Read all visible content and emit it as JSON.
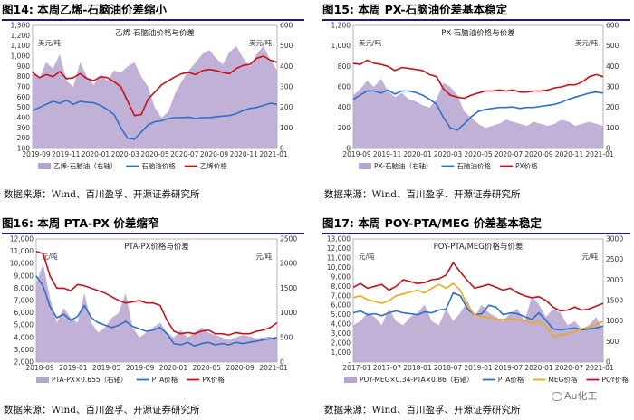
{
  "page": {
    "panels": [
      {
        "figure": "图14:",
        "title": "本周乙烯-石脑油价差缩小",
        "source": "数据来源：Wind、百川盈孚、开源证券研究所"
      },
      {
        "figure": "图15:",
        "title": "本周 PX-石脑油价差基本稳定",
        "source": "数据来源：Wind、百川盈孚、开源证券研究所"
      },
      {
        "figure": "图16:",
        "title": "本周 PTA-PX 价差缩窄",
        "source": "数据来源：Wind、百川盈孚、开源证券研究所"
      },
      {
        "figure": "图17:",
        "title": "本周 POY-PTA/MEG 价差基本稳定",
        "source": "数据来源：Wind、百川盈孚、开源证券研究所"
      }
    ],
    "watermark": "Au化工"
  },
  "chart_data": [
    {
      "type": "area+line",
      "title": "乙烯-石脑油价格与价差",
      "unit": "美元/吨",
      "left_axis": {
        "min": 100,
        "max": 1300,
        "ticks": [
          "100",
          "200",
          "300",
          "400",
          "500",
          "600",
          "700",
          "800",
          "900",
          "1,000",
          "1,100",
          "1,200",
          "1,300"
        ]
      },
      "right_axis": {
        "min": 0,
        "max": 600,
        "ticks": [
          "0",
          "100",
          "200",
          "300",
          "400",
          "500",
          "600"
        ]
      },
      "x_ticks": [
        "2019-09",
        "2019-11",
        "2020-01",
        "2020-03",
        "2020-05",
        "2020-07",
        "2020-09",
        "2020-11",
        "2021-01"
      ],
      "series": [
        {
          "name": "乙烯-石脑油（右轴）",
          "kind": "area",
          "axis": "right",
          "color": "#b7a3cf",
          "values": [
            380,
            340,
            420,
            390,
            460,
            330,
            300,
            420,
            350,
            310,
            360,
            330,
            380,
            370,
            400,
            420,
            350,
            300,
            200,
            150,
            180,
            270,
            330,
            380,
            420,
            460,
            480,
            440,
            410,
            470,
            500,
            440,
            400,
            460,
            500,
            430,
            380
          ]
        },
        {
          "name": "石脑油价格",
          "kind": "line",
          "axis": "left",
          "color": "#2e6fc7",
          "values": [
            470,
            500,
            530,
            560,
            540,
            570,
            530,
            560,
            550,
            545,
            520,
            480,
            430,
            300,
            200,
            190,
            260,
            330,
            360,
            370,
            390,
            400,
            400,
            405,
            390,
            400,
            400,
            410,
            415,
            420,
            440,
            470,
            490,
            500,
            520,
            540,
            530
          ]
        },
        {
          "name": "乙烯价格",
          "kind": "line",
          "axis": "left",
          "color": "#c8101a",
          "values": [
            840,
            790,
            820,
            800,
            850,
            780,
            790,
            830,
            780,
            760,
            800,
            790,
            750,
            700,
            560,
            420,
            430,
            580,
            650,
            720,
            760,
            800,
            830,
            840,
            820,
            860,
            870,
            860,
            840,
            830,
            880,
            910,
            920,
            980,
            1000,
            960,
            940
          ]
        }
      ]
    },
    {
      "type": "area+line",
      "title": "PX-石脑油价格与价差",
      "unit": "美元/吨",
      "left_axis": {
        "min": 0,
        "max": 1200,
        "ticks": [
          "0",
          "200",
          "400",
          "600",
          "800",
          "1,000",
          "1,200"
        ]
      },
      "right_axis": {
        "min": 0,
        "max": 600,
        "ticks": [
          "0",
          "100",
          "200",
          "300",
          "400",
          "500",
          "600"
        ]
      },
      "x_ticks": [
        "2019-09",
        "2019-11",
        "2020-01",
        "2020-03",
        "2020-05",
        "2020-07",
        "2020-09",
        "2020-11",
        "2021-01"
      ],
      "series": [
        {
          "name": "PX-石脑油（右轴）",
          "kind": "area",
          "axis": "right",
          "color": "#b7a3cf",
          "values": [
            260,
            290,
            330,
            300,
            340,
            280,
            250,
            270,
            240,
            230,
            210,
            200,
            240,
            320,
            300,
            260,
            180,
            150,
            120,
            100,
            110,
            120,
            140,
            130,
            120,
            110,
            130,
            120,
            110,
            120,
            140,
            130,
            110,
            120,
            130,
            120,
            110
          ]
        },
        {
          "name": "石脑油价格",
          "kind": "line",
          "axis": "left",
          "color": "#2e6fc7",
          "values": [
            480,
            520,
            560,
            560,
            540,
            570,
            530,
            560,
            560,
            545,
            520,
            480,
            430,
            300,
            200,
            180,
            240,
            310,
            360,
            380,
            390,
            400,
            400,
            405,
            390,
            400,
            400,
            410,
            420,
            430,
            450,
            480,
            500,
            520,
            540,
            550,
            540
          ]
        },
        {
          "name": "PX价格",
          "kind": "line",
          "axis": "left",
          "color": "#c8101a",
          "values": [
            830,
            820,
            860,
            830,
            820,
            800,
            760,
            790,
            780,
            770,
            760,
            720,
            700,
            580,
            520,
            500,
            490,
            520,
            540,
            560,
            560,
            570,
            560,
            570,
            550,
            550,
            560,
            560,
            570,
            590,
            600,
            620,
            620,
            650,
            700,
            720,
            700
          ]
        }
      ]
    },
    {
      "type": "area+line",
      "title": "PTA-PX价格与价差",
      "unit": "元/吨",
      "left_axis": {
        "min": 2000,
        "max": 12000,
        "ticks": [
          "2,000",
          "3,000",
          "4,000",
          "5,000",
          "6,000",
          "7,000",
          "8,000",
          "9,000",
          "10,000",
          "11,000",
          "12,000"
        ]
      },
      "right_axis": {
        "min": 0,
        "max": 2500,
        "ticks": [
          "0",
          "500",
          "1000",
          "1500",
          "2000",
          "2500"
        ]
      },
      "x_ticks": [
        "2018-09",
        "2019-01",
        "2019-05",
        "2019-09",
        "2020-01",
        "2020-05",
        "2020-09",
        "2021-01"
      ],
      "series": [
        {
          "name": "PTA-PX×0.655（右轴）",
          "kind": "area",
          "axis": "right",
          "color": "#b7a3cf",
          "values": [
            1600,
            2000,
            1300,
            800,
            1100,
            900,
            800,
            1400,
            800,
            600,
            700,
            900,
            1000,
            1400,
            700,
            500,
            600,
            700,
            800,
            600,
            500,
            650,
            500,
            600,
            700,
            600,
            550,
            500,
            450,
            500,
            550,
            520,
            480,
            500,
            520,
            450
          ]
        },
        {
          "name": "PTA价格",
          "kind": "line",
          "axis": "left",
          "color": "#2e6fc7",
          "values": [
            9000,
            8200,
            6500,
            5600,
            5900,
            5400,
            5700,
            6600,
            5600,
            5200,
            5000,
            4800,
            5000,
            5300,
            4900,
            4700,
            4500,
            4600,
            4800,
            4300,
            3500,
            3400,
            3600,
            3300,
            3500,
            3600,
            3400,
            3500,
            3400,
            3600,
            3500,
            3600,
            3700,
            3800,
            3900,
            4000
          ]
        },
        {
          "name": "PX价格",
          "kind": "line",
          "axis": "left",
          "color": "#c8101a",
          "values": [
            11000,
            10800,
            9000,
            8000,
            8000,
            7800,
            8300,
            8200,
            8000,
            7800,
            7600,
            7300,
            7000,
            6800,
            6900,
            7000,
            6800,
            6800,
            6600,
            5400,
            4500,
            4300,
            4400,
            4300,
            4500,
            4600,
            4300,
            4300,
            4200,
            4400,
            4300,
            4300,
            4500,
            4600,
            4800,
            5200
          ]
        }
      ]
    },
    {
      "type": "area+line",
      "title": "POY-PTA/MEG价格与价差",
      "unit": "元/吨",
      "left_axis": {
        "min": 0,
        "max": 13000,
        "ticks": [
          "-",
          "1,000",
          "2,000",
          "3,000",
          "4,000",
          "5,000",
          "6,000",
          "7,000",
          "8,000",
          "9,000",
          "10,000",
          "11,000",
          "12,000",
          "13,000"
        ]
      },
      "right_axis": {
        "min": 0,
        "max": 3000,
        "ticks": [
          "0",
          "500",
          "1000",
          "1500",
          "2000",
          "2500",
          "3000"
        ]
      },
      "x_ticks": [
        "2017-01",
        "2017-07",
        "2018-01",
        "2018-07",
        "2019-01",
        "2019-07",
        "2020-01",
        "2020-07",
        "2021-01"
      ],
      "series": [
        {
          "name": "POY-MEG×0.34-PTA×0.86（右轴）",
          "kind": "area",
          "axis": "right",
          "color": "#b7a3cf",
          "values": [
            900,
            1000,
            1200,
            1100,
            900,
            1300,
            1000,
            900,
            1100,
            1200,
            1400,
            1000,
            900,
            1300,
            1000,
            1200,
            1500,
            1100,
            1400,
            1200,
            1100,
            1000,
            1200,
            1300,
            1000,
            1600,
            1400,
            1100,
            1300,
            1200,
            900,
            1000,
            800,
            900,
            1100,
            800
          ]
        },
        {
          "name": "PTA价格",
          "kind": "line",
          "axis": "left",
          "color": "#2e6fc7",
          "values": [
            5200,
            5400,
            5000,
            5100,
            4900,
            5200,
            5400,
            5200,
            5100,
            5000,
            5300,
            5200,
            5500,
            5600,
            7300,
            7000,
            5600,
            5000,
            5100,
            6000,
            5800,
            5000,
            5200,
            5100,
            4800,
            4500,
            5200,
            4400,
            3500,
            3400,
            3500,
            3600,
            3400,
            3500,
            3600,
            3800
          ]
        },
        {
          "name": "MEG价格",
          "kind": "line",
          "axis": "left",
          "color": "#f0a818",
          "values": [
            6800,
            7000,
            6600,
            6400,
            6200,
            6500,
            7000,
            7200,
            7400,
            7600,
            7300,
            7800,
            8200,
            7800,
            8300,
            7600,
            5900,
            5000,
            4800,
            4700,
            4500,
            4500,
            4600,
            4500,
            4400,
            4100,
            4300,
            3800,
            2700,
            2800,
            3000,
            3200,
            3500,
            3700,
            4000,
            4300
          ]
        },
        {
          "name": "POY价格",
          "kind": "line",
          "axis": "left",
          "color": "#c8101a",
          "values": [
            7900,
            8300,
            7800,
            8000,
            8200,
            7600,
            8000,
            8700,
            8500,
            8300,
            8400,
            8700,
            8800,
            9200,
            10500,
            9500,
            8600,
            7800,
            8000,
            8200,
            7900,
            7600,
            7800,
            7300,
            7000,
            6800,
            6900,
            6500,
            5800,
            5400,
            5500,
            5800,
            5500,
            5600,
            5900,
            6200
          ]
        }
      ]
    }
  ]
}
